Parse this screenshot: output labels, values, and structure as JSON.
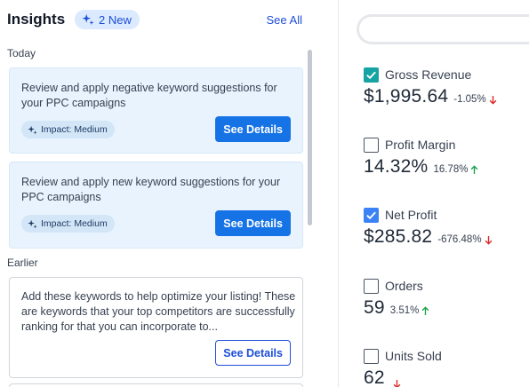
{
  "insights": {
    "title": "Insights",
    "new_badge": "2 New",
    "see_all": "See All",
    "sections": {
      "today": "Today",
      "earlier": "Earlier"
    },
    "cards": [
      {
        "text": "Review and apply negative keyword suggestions for your PPC campaigns",
        "impact": "Impact: Medium",
        "button": "See Details"
      },
      {
        "text": "Review and apply new keyword suggestions for your PPC campaigns",
        "impact": "Impact: Medium",
        "button": "See Details"
      },
      {
        "text": "Add these keywords to help optimize your listing! These are keywords that your top competitors are successfully ranking for that you can incorporate to...",
        "button": "See Details"
      }
    ]
  },
  "metrics": [
    {
      "label": "Gross Revenue",
      "checked": true,
      "value": "$1,995.64",
      "change": "-1.05%",
      "direction": "down"
    },
    {
      "label": "Profit Margin",
      "checked": false,
      "value": "14.32%",
      "change": "16.78%",
      "direction": "up"
    },
    {
      "label": "Net Profit",
      "checked": true,
      "value": "$285.82",
      "change": "-676.48%",
      "direction": "down"
    },
    {
      "label": "Orders",
      "checked": false,
      "value": "59",
      "change": "3.51%",
      "direction": "up"
    },
    {
      "label": "Units Sold",
      "checked": false,
      "value": "62",
      "change": "",
      "direction": "down"
    }
  ],
  "colors": {
    "accent": "#1673e6",
    "checkbox_checked": "#16a3a3",
    "trend_up": "#16a34a",
    "trend_down": "#dc2626",
    "card_highlight": "#e8f3fd"
  }
}
